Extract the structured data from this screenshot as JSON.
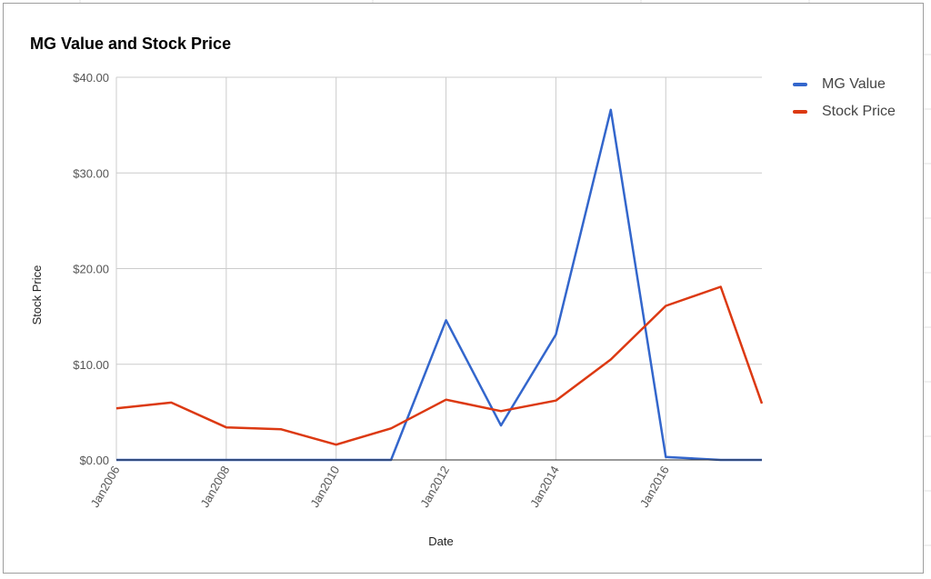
{
  "chart_data": {
    "type": "line",
    "title": "MG Value and Stock Price",
    "xlabel": "Date",
    "ylabel": "Stock Price",
    "x": [
      "2006-01",
      "2007-01",
      "2008-01",
      "2009-01",
      "2010-01",
      "2011-01",
      "2012-01",
      "2013-01",
      "2014-01",
      "2015-01",
      "2016-01",
      "2017-01",
      "2017-10"
    ],
    "x_ticks": [
      "Jan2006",
      "Jan2008",
      "Jan2010",
      "Jan2012",
      "Jan2014",
      "Jan2016"
    ],
    "x_tick_dates": [
      "2006-01",
      "2008-01",
      "2010-01",
      "2012-01",
      "2014-01",
      "2016-01"
    ],
    "x_range": [
      "2006-01",
      "2017-10"
    ],
    "ylim": [
      0,
      40
    ],
    "y_ticks": [
      "$0.00",
      "$10.00",
      "$20.00",
      "$30.00",
      "$40.00"
    ],
    "y_tick_values": [
      0,
      10,
      20,
      30,
      40
    ],
    "grid": true,
    "legend_position": "right",
    "series": [
      {
        "name": "MG Value",
        "color": "#3366cc",
        "values": [
          0,
          0,
          0,
          0,
          0,
          0,
          14.6,
          3.6,
          13.1,
          36.6,
          0.3,
          0,
          0
        ]
      },
      {
        "name": "Stock Price",
        "color": "#dc3912",
        "values": [
          5.4,
          6.0,
          3.4,
          3.2,
          1.6,
          3.3,
          6.3,
          5.1,
          6.2,
          10.5,
          16.1,
          18.1,
          5.9
        ]
      }
    ]
  }
}
